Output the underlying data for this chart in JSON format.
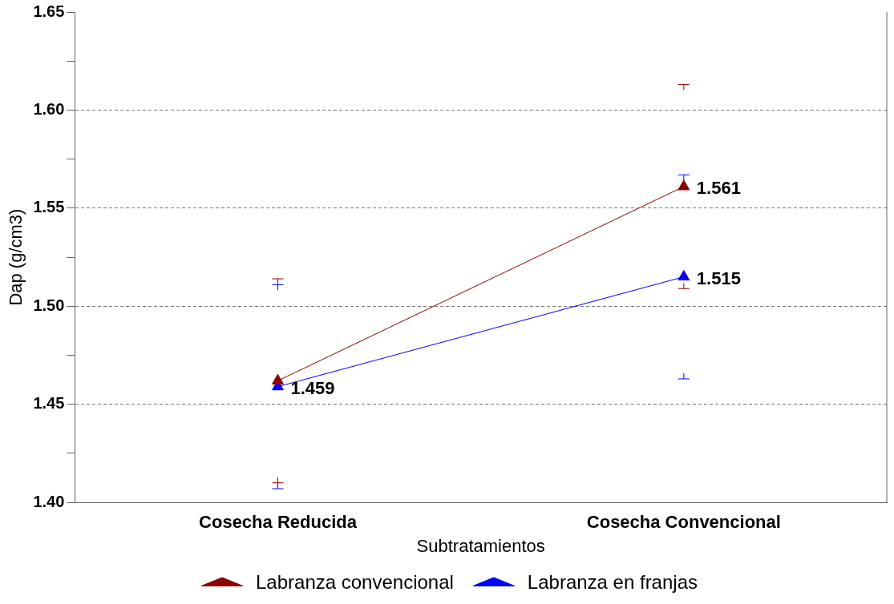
{
  "chart_data": {
    "type": "line",
    "xlabel": "Subtratamientos",
    "ylabel": "Dap (g/cm3)",
    "categories": [
      "Cosecha Reducida",
      "Cosecha Convencional"
    ],
    "series": [
      {
        "name": "Labranza convencional",
        "color": "#8b0000",
        "values": [
          1.462,
          1.561
        ],
        "errors": [
          0.052,
          0.052
        ],
        "value_labels": [
          null,
          "1.561"
        ]
      },
      {
        "name": "Labranza en franjas",
        "color": "#0000ff",
        "values": [
          1.459,
          1.515
        ],
        "errors": [
          0.052,
          0.052
        ],
        "value_labels": [
          "1.459",
          "1.515"
        ]
      }
    ],
    "ylim": [
      1.4,
      1.65
    ],
    "yticks": [
      {
        "value": 1.4,
        "label": "1.40"
      },
      {
        "value": 1.425,
        "label": null
      },
      {
        "value": 1.45,
        "label": "1.45"
      },
      {
        "value": 1.475,
        "label": null
      },
      {
        "value": 1.5,
        "label": "1.50"
      },
      {
        "value": 1.525,
        "label": null
      },
      {
        "value": 1.55,
        "label": "1.55"
      },
      {
        "value": 1.575,
        "label": null
      },
      {
        "value": 1.6,
        "label": "1.60"
      },
      {
        "value": 1.625,
        "label": null
      },
      {
        "value": 1.65,
        "label": "1.65"
      }
    ],
    "grid": "y",
    "legend": "bottom",
    "marker": "triangle",
    "line_style": "solid"
  }
}
